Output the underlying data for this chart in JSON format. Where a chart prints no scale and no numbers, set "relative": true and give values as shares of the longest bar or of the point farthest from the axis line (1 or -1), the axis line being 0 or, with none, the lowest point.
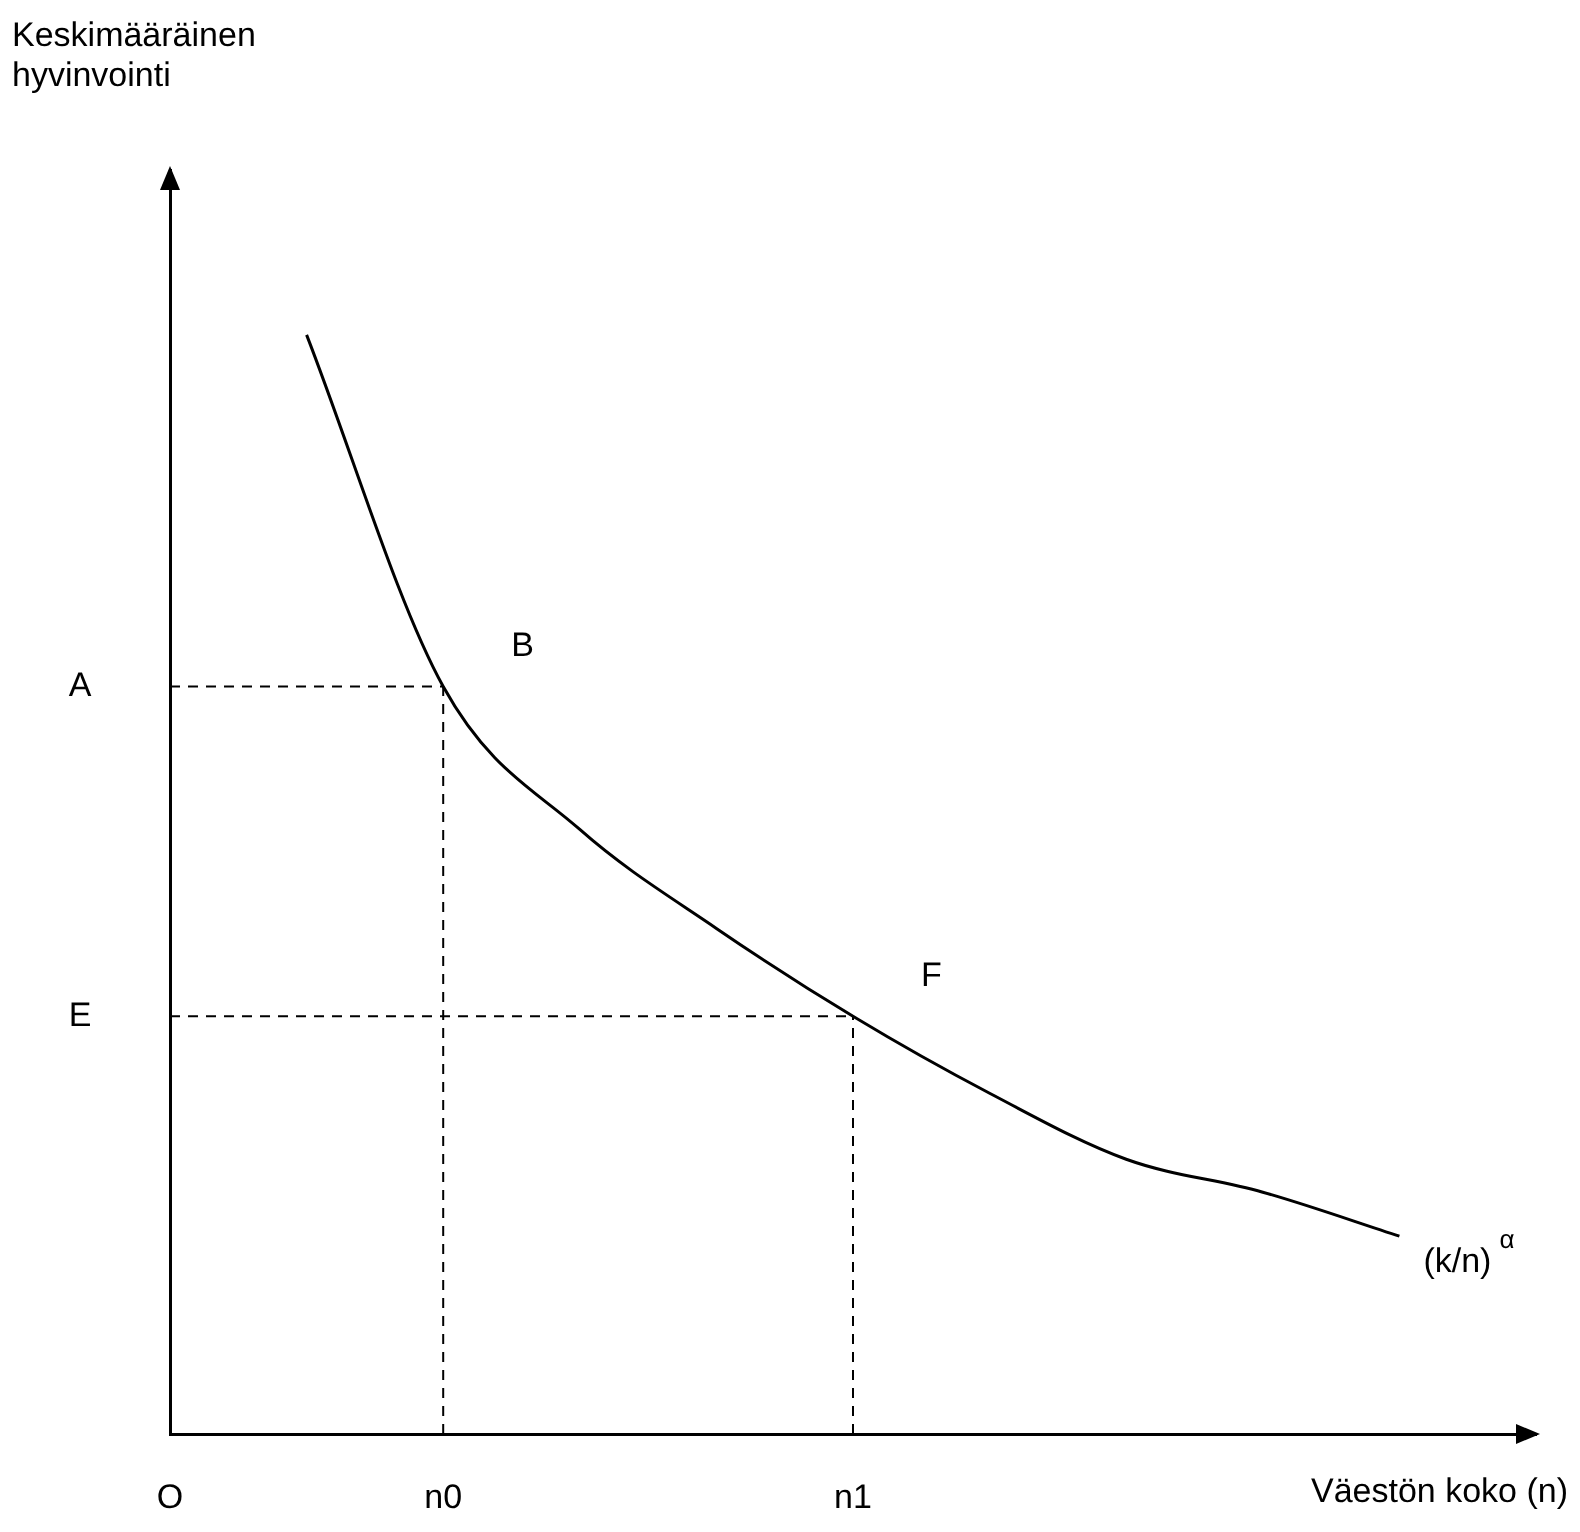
{
  "chart_data": {
    "type": "line",
    "relative": true,
    "xlabel": "Väestön koko (n)",
    "categories": [
      "O",
      null,
      "n0",
      null,
      null,
      "n1",
      null,
      null,
      null,
      null,
      null
    ],
    "series": [
      {
        "name": "(k/n)$^{α}$",
        "color": "#000000",
        "values": [
          null,
          1,
          0.68,
          0.55,
          0.46,
          0.38,
          0.31,
          0.25,
          0.22,
          0.18,
          null
        ]
      }
    ],
    "ref_lines": [
      {
        "axis": "y",
        "value": 0.68,
        "label": "A",
        "color": "#000000",
        "line_style": "dashed"
      },
      {
        "axis": "y",
        "value": 0.38,
        "label": "E",
        "color": "#000000",
        "line_style": "dashed"
      },
      {
        "axis": "x",
        "value": "n0",
        "color": "#000000",
        "line_style": "dashed"
      },
      {
        "axis": "x",
        "value": "n1",
        "color": "#000000",
        "line_style": "dashed"
      }
    ],
    "annotations": [
      "Keskimääräinen hyvinvointi",
      {
        "text": "B",
        "x": "n0",
        "y": 0.68
      },
      {
        "text": "F",
        "x": "n1",
        "y": 0.38
      }
    ],
    "grid": false,
    "legend": false,
    "marker": "none"
  }
}
